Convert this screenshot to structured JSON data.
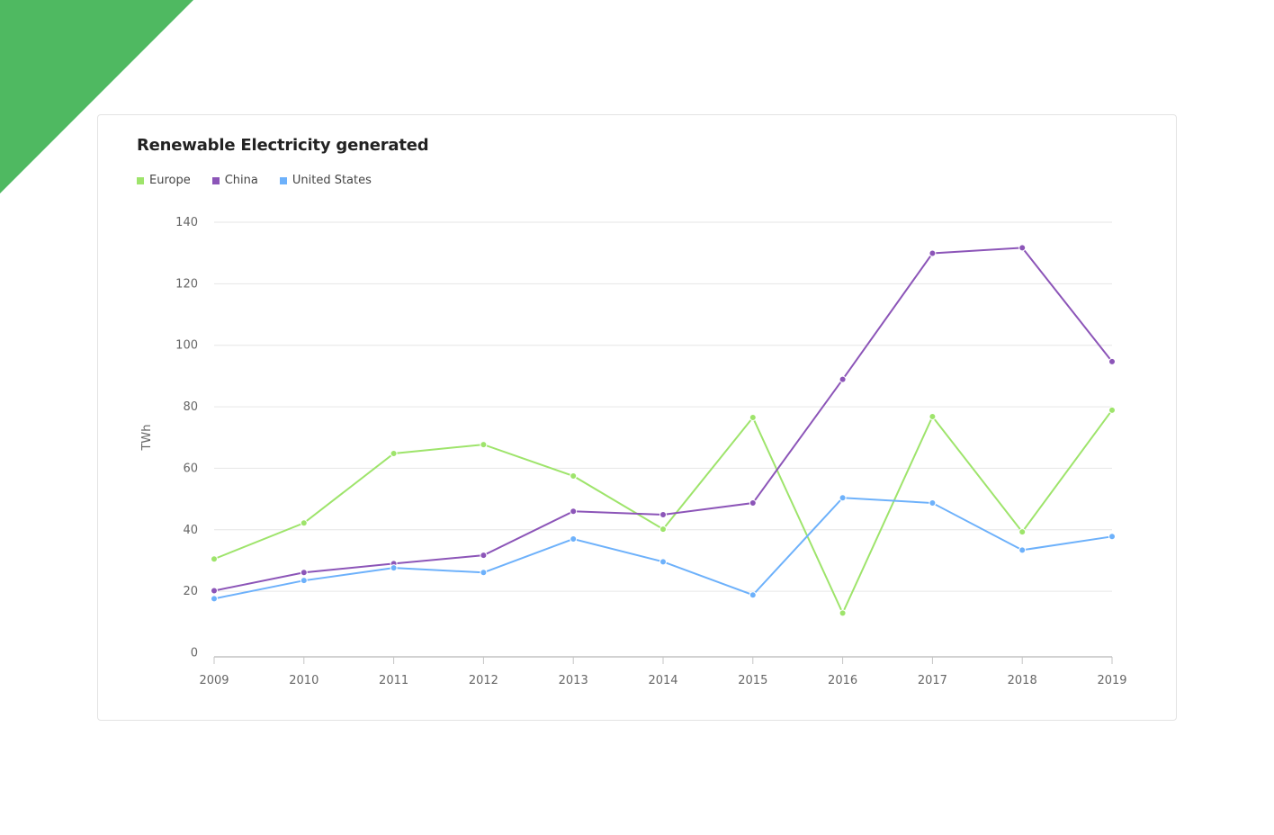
{
  "chart_data": {
    "type": "line",
    "title": "Renewable Electricity generated",
    "xlabel": "",
    "ylabel": "TWh",
    "ylim": [
      0,
      140
    ],
    "yticks": [
      0,
      20,
      40,
      60,
      80,
      100,
      120,
      140
    ],
    "grid": true,
    "legend": "top-left",
    "categories": [
      "2009",
      "2010",
      "2011",
      "2012",
      "2013",
      "2014",
      "2015",
      "2016",
      "2017",
      "2018",
      "2019"
    ],
    "series": [
      {
        "name": "Europe",
        "color": "#9ee46b",
        "values": [
          30.5,
          42.2,
          64.8,
          67.7,
          57.5,
          40.2,
          76.5,
          12.9,
          76.8,
          39.3,
          78.9
        ]
      },
      {
        "name": "China",
        "color": "#8c55b8",
        "values": [
          20.2,
          26.1,
          29.0,
          31.7,
          46.0,
          44.9,
          48.7,
          88.9,
          129.9,
          131.7,
          94.7
        ]
      },
      {
        "name": "United States",
        "color": "#6db1fb",
        "values": [
          17.6,
          23.5,
          27.6,
          26.1,
          37.0,
          29.6,
          18.8,
          50.4,
          48.7,
          33.4,
          37.8
        ]
      }
    ]
  }
}
